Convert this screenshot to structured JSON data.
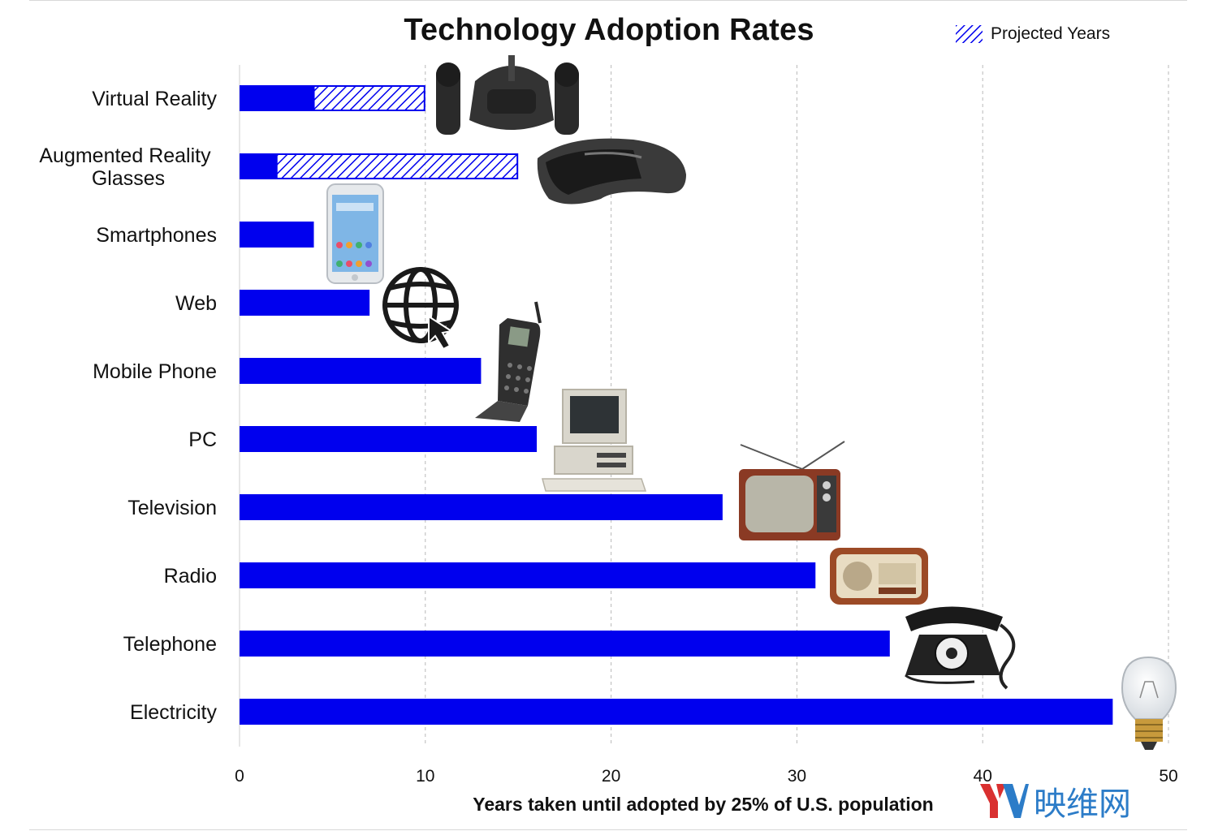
{
  "chart_data": {
    "type": "bar",
    "orientation": "horizontal",
    "title": "Technology Adoption Rates",
    "xlabel": "Years taken until adopted by 25% of U.S. population",
    "ylabel": "",
    "xlim": [
      0,
      50
    ],
    "xticks": [
      0,
      10,
      20,
      30,
      40,
      50
    ],
    "grid": "vertical-dashed",
    "legend": {
      "placement": "top-right",
      "entries": [
        "Projected Years"
      ]
    },
    "categories": [
      "Virtual Reality",
      "Augmented Reality Glasses",
      "Smartphones",
      "Web",
      "Mobile Phone",
      "PC",
      "Television",
      "Radio",
      "Telephone",
      "Electricity"
    ],
    "series": [
      {
        "name": "",
        "values": [
          4,
          2,
          4,
          7,
          13,
          16,
          26,
          31,
          35,
          47
        ]
      },
      {
        "name": "Projected Years",
        "values": [
          6,
          13,
          0,
          0,
          0,
          0,
          0,
          0,
          0,
          0
        ]
      }
    ],
    "colors": {
      "bar": "#0000ee",
      "hatch": "#0000ee",
      "grid": "#b8b8b8"
    },
    "icons": [
      "vr-headset-icon",
      "ar-glasses-icon",
      "smartphone-icon",
      "globe-cursor-icon",
      "mobile-phone-icon",
      "pc-icon",
      "television-icon",
      "radio-icon",
      "telephone-icon",
      "lightbulb-icon"
    ]
  },
  "watermark": {
    "text": "映维网",
    "logo": "YV"
  }
}
